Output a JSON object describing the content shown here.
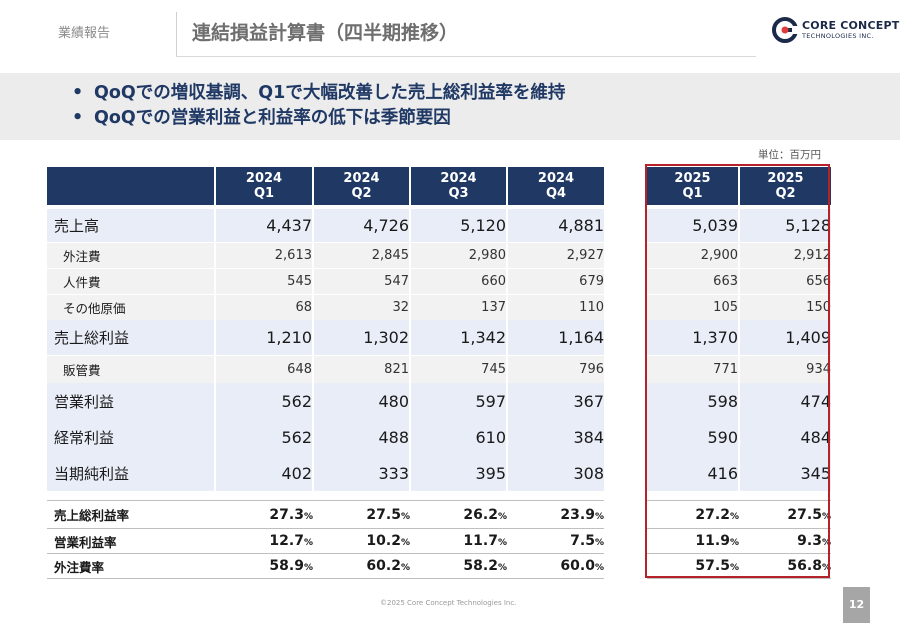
{
  "header": {
    "section_label": "業績報告",
    "title": "連結損益計算書（四半期推移）",
    "logo_line1": "CORE CONCEPT",
    "logo_line2": "TECHNOLOGIES INC."
  },
  "summary": [
    "QoQでの増収基調、Q1で大幅改善した売上総利益率を維持",
    "QoQでの営業利益と利益率の低下は季節要因"
  ],
  "unit_note": "単位：百万円",
  "columns": [
    {
      "year": "2024",
      "quarter": "Q1"
    },
    {
      "year": "2024",
      "quarter": "Q2"
    },
    {
      "year": "2024",
      "quarter": "Q3"
    },
    {
      "year": "2024",
      "quarter": "Q4"
    },
    {
      "year": "2025",
      "quarter": "Q1"
    },
    {
      "year": "2025",
      "quarter": "Q2"
    }
  ],
  "rows": [
    {
      "label": "売上高",
      "kind": "major",
      "values": [
        "4,437",
        "4,726",
        "5,120",
        "4,881",
        "5,039",
        "5,128"
      ]
    },
    {
      "label": "外注費",
      "kind": "minor",
      "values": [
        "2,613",
        "2,845",
        "2,980",
        "2,927",
        "2,900",
        "2,912"
      ]
    },
    {
      "label": "人件費",
      "kind": "minor",
      "values": [
        "545",
        "547",
        "660",
        "679",
        "663",
        "656"
      ]
    },
    {
      "label": "その他原価",
      "kind": "minor",
      "values": [
        "68",
        "32",
        "137",
        "110",
        "105",
        "150"
      ]
    },
    {
      "label": "売上総利益",
      "kind": "major",
      "values": [
        "1,210",
        "1,302",
        "1,342",
        "1,164",
        "1,370",
        "1,409"
      ]
    },
    {
      "label": "販管費",
      "kind": "minor",
      "values": [
        "648",
        "821",
        "745",
        "796",
        "771",
        "934"
      ]
    },
    {
      "label": "営業利益",
      "kind": "major",
      "values": [
        "562",
        "480",
        "597",
        "367",
        "598",
        "474"
      ]
    },
    {
      "label": "経常利益",
      "kind": "major",
      "values": [
        "562",
        "488",
        "610",
        "384",
        "590",
        "484"
      ]
    },
    {
      "label": "当期純利益",
      "kind": "major",
      "values": [
        "402",
        "333",
        "395",
        "308",
        "416",
        "345"
      ]
    }
  ],
  "ratio_rows": [
    {
      "label": "売上総利益率",
      "values": [
        "27.3",
        "27.5",
        "26.2",
        "23.9",
        "27.2",
        "27.5"
      ]
    },
    {
      "label": "営業利益率",
      "values": [
        "12.7",
        "10.2",
        "11.7",
        "7.5",
        "11.9",
        "9.3"
      ]
    },
    {
      "label": "外注費率",
      "values": [
        "58.9",
        "60.2",
        "58.2",
        "60.0",
        "57.5",
        "56.8"
      ]
    }
  ],
  "percent_symbol": "%",
  "highlight_color": "#b5222a",
  "header_color": "#1f3864",
  "footer": {
    "copyright": "©2025 Core Concept Technologies Inc.",
    "page_number": "12"
  }
}
